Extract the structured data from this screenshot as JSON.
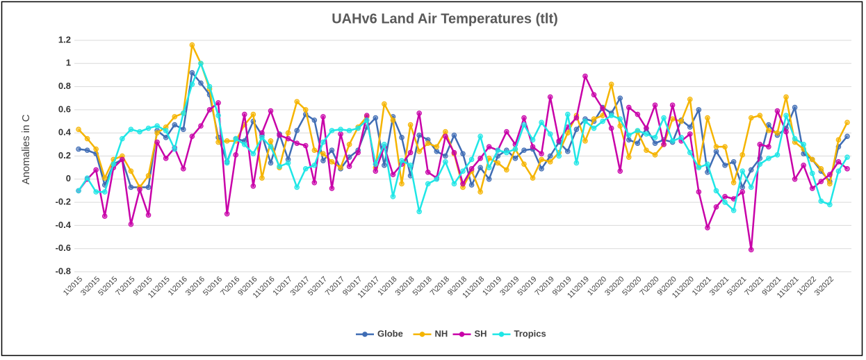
{
  "chart_data": {
    "type": "line",
    "title": "UAHv6 Land Air Temperatures (tlt)",
    "y_label": "Anomalies in C",
    "categories": [
      "1\\2015",
      null,
      "3\\2015",
      null,
      "5\\2015",
      null,
      "7\\2015",
      null,
      "9\\2015",
      null,
      "11\\2015",
      null,
      "1\\2016",
      null,
      "3\\2016",
      null,
      "5\\2016",
      null,
      "7\\2016",
      null,
      "9\\2016",
      null,
      "11\\2016",
      null,
      "1\\2017",
      null,
      "3\\2017",
      null,
      "5\\2017",
      null,
      "7\\2017",
      null,
      "9\\2017",
      null,
      "11\\2017",
      null,
      "1\\2018",
      null,
      "3\\2018",
      null,
      "5\\2018",
      null,
      "7\\2018",
      null,
      "9\\2018",
      null,
      "11\\2018",
      null,
      "1\\2019",
      null,
      "3\\2019",
      null,
      "5\\2019",
      null,
      "7\\2019",
      null,
      "9\\2019",
      null,
      "11\\2019",
      null,
      "1\\2020",
      null,
      "3\\2020",
      null,
      "5\\2020",
      null,
      "7\\2020",
      null,
      "9\\2020",
      null,
      "11\\2020",
      null,
      "1\\2021",
      null,
      "3\\2021",
      null,
      "5\\2021",
      null,
      "7\\2021",
      null,
      "9\\2021",
      null,
      "11\\2021",
      null,
      "1\\2022",
      null,
      "3\\2022",
      null,
      null
    ],
    "series": [
      {
        "name": "Globe",
        "color": "#3f6cb4",
        "values": [
          0.26,
          0.25,
          0.22,
          -0.05,
          0.13,
          0.17,
          -0.07,
          -0.07,
          -0.07,
          0.42,
          0.36,
          0.47,
          0.43,
          0.92,
          0.83,
          0.73,
          0.36,
          0.15,
          0.35,
          0.33,
          0.5,
          0.38,
          0.14,
          0.39,
          0.17,
          0.42,
          0.56,
          0.51,
          0.16,
          0.25,
          0.09,
          0.19,
          0.25,
          0.45,
          0.53,
          0.12,
          0.54,
          0.36,
          0.03,
          0.38,
          0.34,
          0.24,
          0.2,
          0.38,
          0.22,
          -0.05,
          0.1,
          0.0,
          0.2,
          0.25,
          0.18,
          0.25,
          0.26,
          0.09,
          0.2,
          0.32,
          0.24,
          0.43,
          0.52,
          0.5,
          0.62,
          0.57,
          0.7,
          0.34,
          0.31,
          0.44,
          0.31,
          0.34,
          0.32,
          0.51,
          0.45,
          0.6,
          0.06,
          0.24,
          0.12,
          0.15,
          -0.07,
          0.08,
          0.18,
          0.47,
          0.38,
          0.44,
          0.62,
          0.22,
          0.17,
          0.07,
          -0.02,
          0.28,
          0.37
        ]
      },
      {
        "name": "NH",
        "color": "#f5b400",
        "values": [
          0.43,
          0.35,
          0.26,
          0.01,
          0.17,
          0.2,
          0.07,
          -0.07,
          0.03,
          0.4,
          0.45,
          0.54,
          0.57,
          1.16,
          1.0,
          0.78,
          0.32,
          0.33,
          0.33,
          0.47,
          0.56,
          0.01,
          0.33,
          0.1,
          0.4,
          0.67,
          0.6,
          0.25,
          0.22,
          0.15,
          0.1,
          0.3,
          0.45,
          0.54,
          0.1,
          0.65,
          0.51,
          -0.04,
          0.47,
          0.24,
          0.31,
          0.28,
          0.41,
          0.22,
          -0.07,
          0.07,
          -0.11,
          0.18,
          0.14,
          0.08,
          0.26,
          0.13,
          0.01,
          0.17,
          0.15,
          0.23,
          0.4,
          0.55,
          0.33,
          0.52,
          0.55,
          0.82,
          0.46,
          0.19,
          0.41,
          0.25,
          0.21,
          0.3,
          0.52,
          0.5,
          0.69,
          0.11,
          0.53,
          0.28,
          0.28,
          -0.03,
          0.21,
          0.53,
          0.55,
          0.42,
          0.4,
          0.71,
          0.32,
          0.26,
          0.17,
          0.09,
          -0.04,
          0.34,
          0.49
        ]
      },
      {
        "name": "SH",
        "color": "#c800a8",
        "values": [
          -0.1,
          0.0,
          0.08,
          -0.32,
          0.1,
          0.17,
          -0.39,
          -0.09,
          -0.31,
          0.32,
          0.18,
          0.27,
          0.09,
          0.37,
          0.46,
          0.6,
          0.66,
          -0.3,
          0.21,
          0.56,
          -0.06,
          0.4,
          0.59,
          0.38,
          0.35,
          0.31,
          0.29,
          -0.03,
          0.54,
          -0.08,
          0.39,
          0.11,
          0.23,
          0.55,
          0.07,
          0.28,
          0.04,
          0.13,
          0.23,
          0.57,
          0.06,
          0.01,
          0.37,
          0.23,
          -0.04,
          0.09,
          0.18,
          0.28,
          0.25,
          0.41,
          0.3,
          0.53,
          0.28,
          0.22,
          0.71,
          0.33,
          0.45,
          0.53,
          0.89,
          0.73,
          0.61,
          0.44,
          0.07,
          0.62,
          0.56,
          0.44,
          0.64,
          0.3,
          0.64,
          0.33,
          0.39,
          -0.11,
          -0.42,
          -0.24,
          -0.15,
          -0.17,
          -0.11,
          -0.61,
          0.3,
          0.28,
          0.59,
          0.41,
          0.0,
          0.12,
          -0.08,
          -0.02,
          0.04,
          0.15,
          0.09
        ]
      },
      {
        "name": "Tropics",
        "color": "#1ee6e6",
        "values": [
          -0.1,
          0.01,
          -0.11,
          -0.11,
          0.13,
          0.35,
          0.43,
          0.41,
          0.44,
          0.46,
          0.42,
          0.26,
          0.57,
          0.82,
          1.0,
          0.8,
          0.55,
          0.14,
          0.35,
          0.3,
          0.22,
          0.36,
          0.28,
          0.11,
          0.14,
          -0.07,
          0.09,
          0.12,
          0.32,
          0.42,
          0.43,
          0.42,
          0.44,
          0.51,
          0.13,
          0.3,
          -0.15,
          0.16,
          0.12,
          -0.28,
          -0.04,
          0.0,
          0.15,
          -0.04,
          0.07,
          0.17,
          0.37,
          0.1,
          0.25,
          0.23,
          0.26,
          0.47,
          0.34,
          0.49,
          0.39,
          0.2,
          0.56,
          0.14,
          0.5,
          0.44,
          0.5,
          0.55,
          0.52,
          0.38,
          0.42,
          0.39,
          0.36,
          0.53,
          0.33,
          0.36,
          0.23,
          0.1,
          0.13,
          -0.1,
          -0.2,
          -0.27,
          0.07,
          -0.07,
          0.13,
          0.18,
          0.21,
          0.55,
          0.35,
          0.3,
          0.05,
          -0.19,
          -0.22,
          0.07,
          0.19
        ]
      }
    ],
    "ylim": [
      -0.8,
      1.2
    ],
    "yticks": [
      -0.8,
      -0.6,
      -0.4,
      -0.2,
      0,
      0.2,
      0.4,
      0.6,
      0.8,
      1,
      1.2
    ],
    "grid": true,
    "legend": "bottom"
  }
}
